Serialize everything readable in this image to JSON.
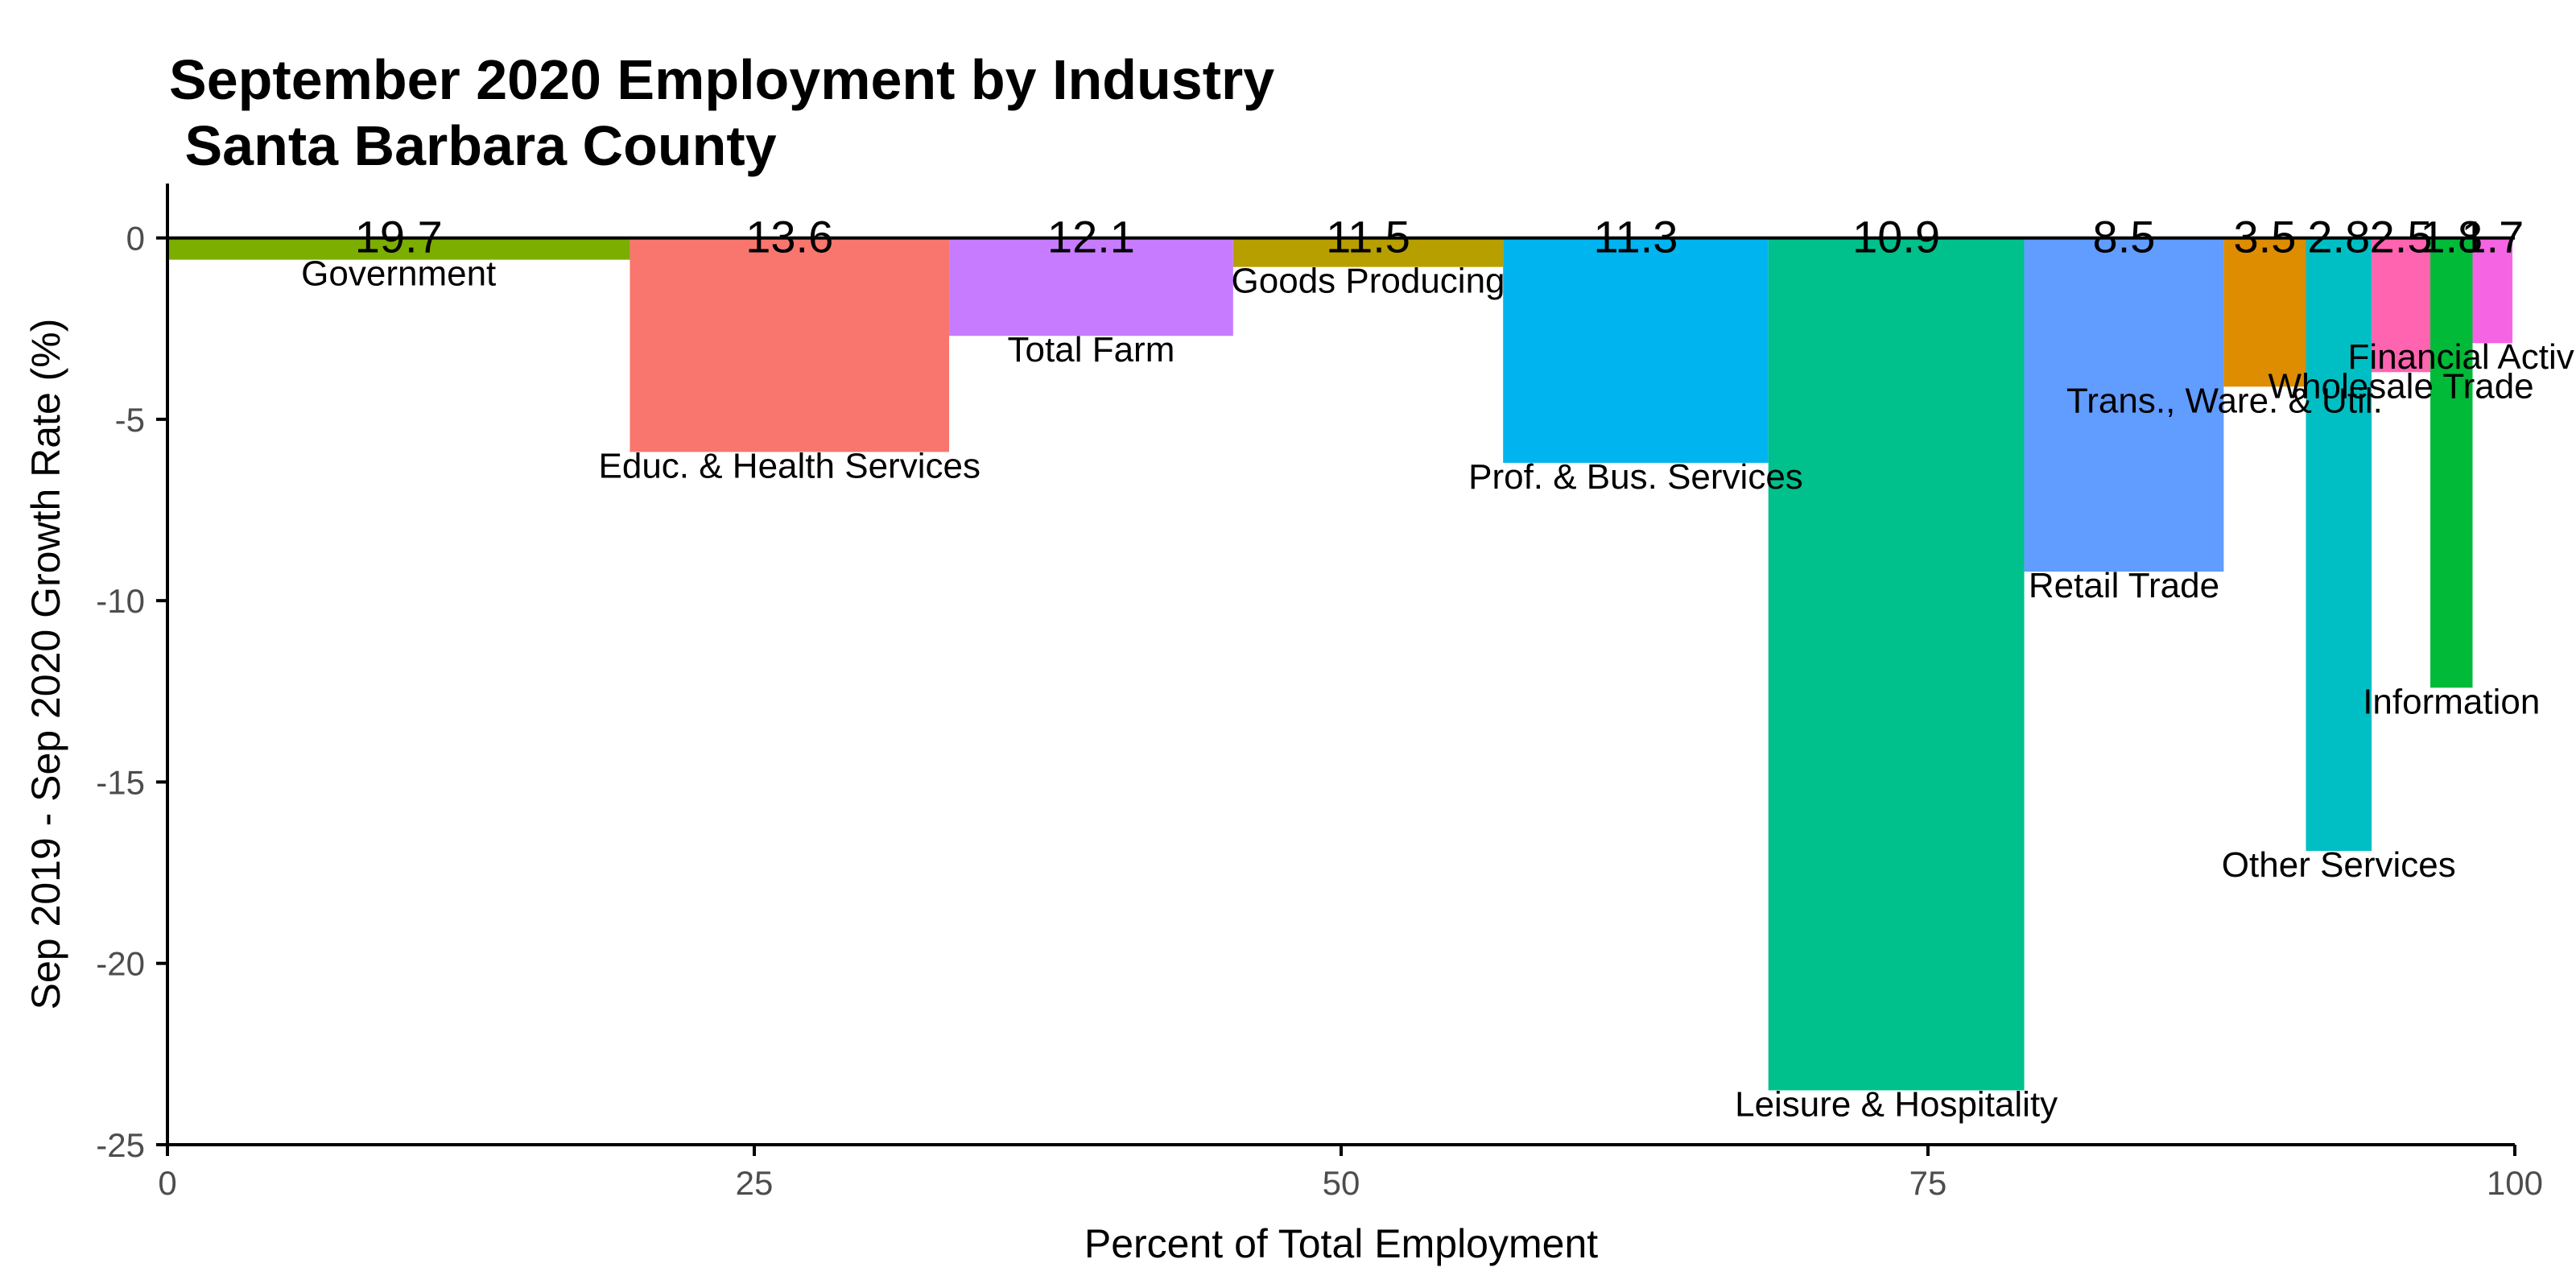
{
  "chart_data": {
    "type": "bar",
    "title_line1": "September 2020 Employment by Industry",
    "title_line2": " Santa Barbara County",
    "xlabel": "Percent of Total Employment",
    "ylabel": "Sep 2019 - Sep 2020 Growth Rate (%)",
    "xlim": [
      0,
      100
    ],
    "ylim": [
      -25,
      1.5
    ],
    "x_ticks": [
      0,
      25,
      50,
      75,
      100
    ],
    "y_ticks": [
      0,
      -5,
      -10,
      -15,
      -20,
      -25
    ],
    "grid": false,
    "legend": "none",
    "categories": [
      "Government",
      "Educ. & Health Services",
      "Total Farm",
      "Goods Producing",
      "Prof. & Bus. Services",
      "Leisure & Hospitality",
      "Retail Trade",
      "Trans., Ware. & Util.",
      "Other Services",
      "Wholesale Trade",
      "Information",
      "Financial Activities"
    ],
    "widths": [
      19.7,
      13.6,
      12.1,
      11.5,
      11.3,
      10.9,
      8.5,
      3.5,
      2.8,
      2.5,
      1.8,
      1.7
    ],
    "width_labels": [
      "19.7",
      "13.6",
      "12.1",
      "11.5",
      "11.3",
      "10.9",
      "8.5",
      "3.5",
      "2.8",
      "2.5",
      "1.8",
      "1.7"
    ],
    "values": [
      -0.6,
      -5.9,
      -2.7,
      -0.8,
      -6.2,
      -23.5,
      -9.2,
      -4.1,
      -16.9,
      -3.7,
      -12.4,
      -2.9
    ],
    "colors": [
      "#7CAE00",
      "#F8766D",
      "#C77CFF",
      "#B79F00",
      "#00B4F0",
      "#00C08B",
      "#619CFF",
      "#DE8C00",
      "#00BFC4",
      "#FF64B0",
      "#00BA38",
      "#F564E3"
    ]
  }
}
